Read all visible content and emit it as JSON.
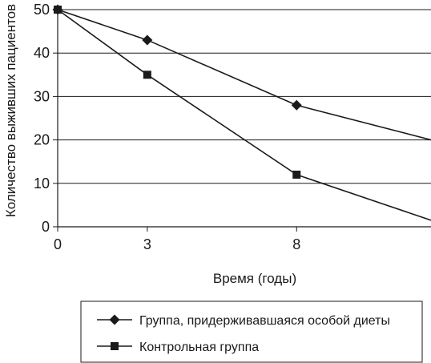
{
  "chart_data": {
    "type": "line",
    "xlabel": "Время (годы)",
    "ylabel": "Количество выживших пациентов",
    "x_ticks": [
      0,
      3,
      8
    ],
    "y_ticks": [
      0,
      10,
      20,
      30,
      40,
      50
    ],
    "xlim": [
      0,
      12.5
    ],
    "ylim": [
      0,
      50
    ],
    "grid": "horizontal",
    "legend_position": "bottom",
    "series": [
      {
        "name": "Группа, придерживавшаяся особой диеты",
        "marker": "diamond",
        "color": "#1a1a1a",
        "x": [
          0,
          3,
          8,
          12.5
        ],
        "y": [
          50,
          43,
          28,
          20
        ],
        "marker_points": 3
      },
      {
        "name": "Контрольная группа",
        "marker": "square",
        "color": "#1a1a1a",
        "x": [
          0,
          3,
          8,
          12.5
        ],
        "y": [
          50,
          35,
          12,
          1.5
        ],
        "marker_points": 3
      }
    ]
  }
}
